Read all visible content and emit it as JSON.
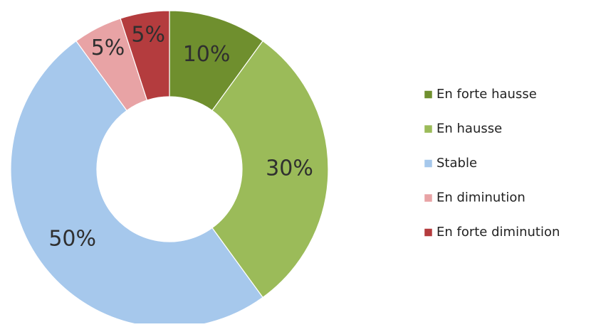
{
  "chart_data": {
    "type": "pie",
    "variant": "donut",
    "title": "",
    "categories": [
      "En forte hausse",
      "En hausse",
      "Stable",
      "En diminution",
      "En forte diminution"
    ],
    "values": [
      10,
      30,
      50,
      5,
      5
    ],
    "labels": [
      "10%",
      "30%",
      "50%",
      "5%",
      "5%"
    ],
    "colors": [
      "#6f8f2e",
      "#9bbb59",
      "#a6c8ec",
      "#e8a3a5",
      "#b43c3e"
    ],
    "legend_position": "right",
    "start_angle": "12 o'clock",
    "direction": "clockwise"
  }
}
